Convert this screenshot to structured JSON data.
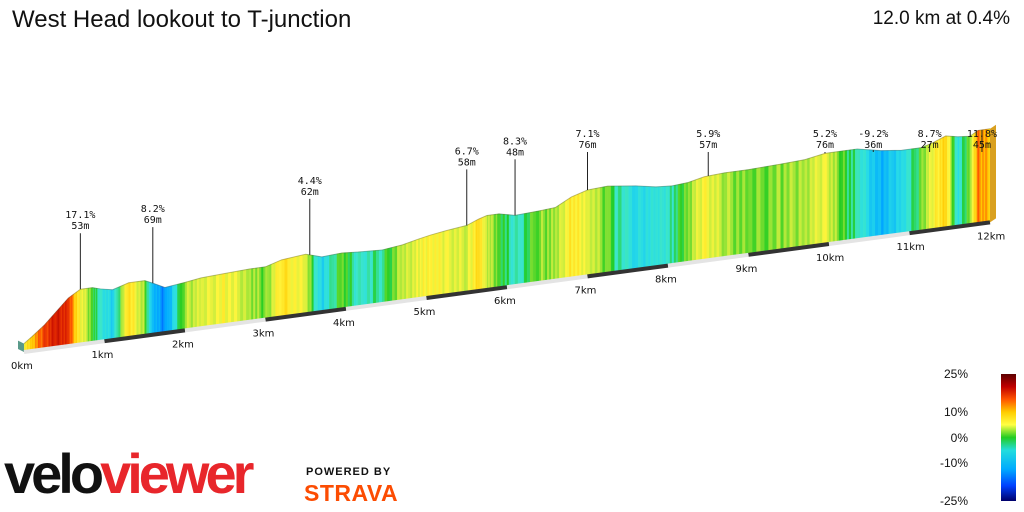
{
  "header": {
    "title": "West Head lookout to T-junction",
    "summary": "12.0 km at 0.4%"
  },
  "chart_data": {
    "type": "area",
    "title": "West Head lookout to T-junction",
    "xlabel": "",
    "ylabel": "",
    "distance_km": 12.0,
    "average_grade_pct": 0.4,
    "xlim": [
      0,
      12
    ],
    "x_ticks": [
      "0km",
      "1km",
      "2km",
      "3km",
      "4km",
      "5km",
      "6km",
      "7km",
      "8km",
      "9km",
      "10km",
      "11km",
      "12km"
    ],
    "elevation_profile": {
      "x_km": [
        0,
        0.1,
        0.25,
        0.4,
        0.55,
        0.7,
        0.85,
        0.95,
        1.1,
        1.3,
        1.5,
        1.6,
        1.75,
        2.0,
        2.2,
        2.5,
        2.8,
        3.0,
        3.2,
        3.5,
        3.7,
        3.95,
        4.15,
        4.45,
        4.7,
        4.9,
        5.05,
        5.25,
        5.5,
        5.65,
        5.75,
        5.9,
        6.1,
        6.4,
        6.6,
        6.8,
        7.0,
        7.25,
        7.6,
        7.85,
        8.05,
        8.25,
        8.45,
        8.7,
        9.0,
        9.4,
        9.7,
        9.95,
        10.15,
        10.35,
        10.65,
        10.9,
        11.15,
        11.3,
        11.45,
        11.6,
        11.75,
        11.85,
        12.0
      ],
      "elevation_m": [
        7,
        12,
        20,
        30,
        40,
        46,
        46,
        44,
        42,
        46,
        46,
        43,
        38,
        40,
        42,
        43,
        44,
        44,
        48,
        50,
        46,
        47,
        46,
        45,
        47,
        50,
        52,
        54,
        56,
        60,
        62,
        62,
        59,
        60,
        61,
        68,
        72,
        73,
        70,
        67,
        66,
        67,
        70,
        71,
        71,
        72,
        73,
        76,
        76,
        76,
        72,
        70,
        70,
        73,
        77,
        75,
        74,
        78,
        78
      ],
      "grade_pct": [
        6,
        10,
        14,
        17.1,
        15,
        6,
        1,
        -3,
        -6,
        8.2,
        2,
        -8,
        -12,
        3,
        4,
        6,
        3,
        1,
        8,
        4.4,
        -6,
        2,
        -3,
        -1,
        3,
        5,
        6.7,
        5,
        4,
        8.3,
        4,
        1,
        -3,
        2,
        2,
        7.1,
        5,
        1,
        -5,
        -4,
        -2,
        2,
        5.9,
        3,
        1,
        2,
        3,
        5.2,
        1,
        -2,
        -9.2,
        -5,
        1,
        6,
        8.7,
        -4,
        2,
        11.8,
        10
      ]
    },
    "annotations": [
      {
        "km": 0.7,
        "grade": "17.1%",
        "elev": "53m"
      },
      {
        "km": 1.6,
        "grade": "8.2%",
        "elev": "69m"
      },
      {
        "km": 3.55,
        "grade": "4.4%",
        "elev": "62m"
      },
      {
        "km": 5.5,
        "grade": "6.7%",
        "elev": "58m"
      },
      {
        "km": 6.1,
        "grade": "8.3%",
        "elev": "48m"
      },
      {
        "km": 7.0,
        "grade": "7.1%",
        "elev": "76m"
      },
      {
        "km": 8.5,
        "grade": "5.9%",
        "elev": "57m"
      },
      {
        "km": 9.95,
        "grade": "5.2%",
        "elev": "76m"
      },
      {
        "km": 10.55,
        "grade": "-9.2%",
        "elev": "36m"
      },
      {
        "km": 11.25,
        "grade": "8.7%",
        "elev": "27m"
      },
      {
        "km": 11.9,
        "grade": "11.8%",
        "elev": "45m"
      }
    ],
    "color_scale": {
      "labels": [
        "25%",
        "10%",
        "0%",
        "-10%",
        "-25%"
      ],
      "values": [
        25,
        10,
        0,
        -10,
        -25
      ]
    }
  },
  "branding": {
    "logo_part1": "velo",
    "logo_part2": "viewer",
    "powered_by": "POWERED BY",
    "strava": "STRAVA"
  }
}
